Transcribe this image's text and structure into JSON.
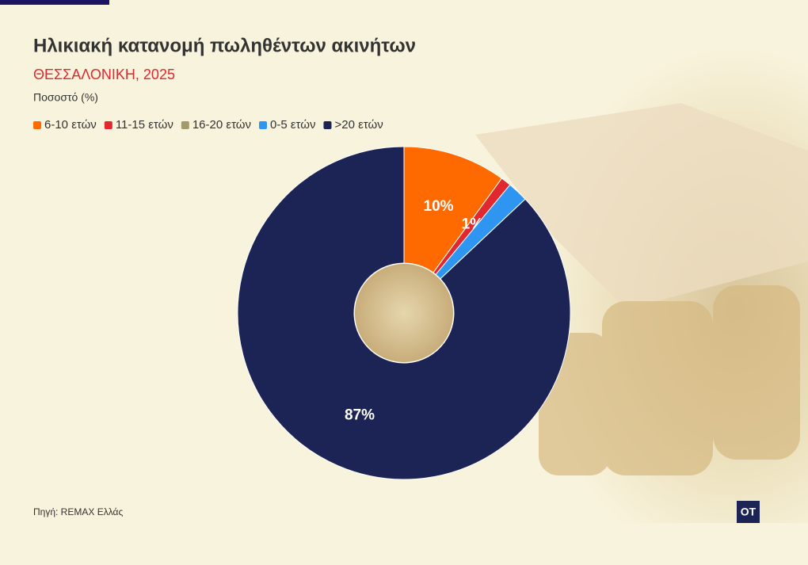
{
  "chart_data": {
    "type": "donut",
    "title": "Ηλικιακή κατανομή πωληθέντων ακινήτων",
    "subtitle": "ΘΕΣΣΑΛΟΝΙΚΗ, 2025",
    "unit_label": "Ποσοστό (%)",
    "categories": [
      "6-10 ετών",
      "11-15 ετών",
      "16-20 ετών",
      "0-5 ετών",
      ">20 ετών"
    ],
    "values": [
      10,
      1,
      0,
      2,
      87
    ],
    "value_labels": [
      "10%",
      "1%",
      null,
      null,
      "87%"
    ],
    "colors": [
      "#ff6a00",
      "#e0282e",
      "#a39a6c",
      "#2e96f0",
      "#1b2455"
    ],
    "legend": "top-left"
  },
  "source": "Πηγή: REMAX Ελλάς",
  "logo": "OT"
}
